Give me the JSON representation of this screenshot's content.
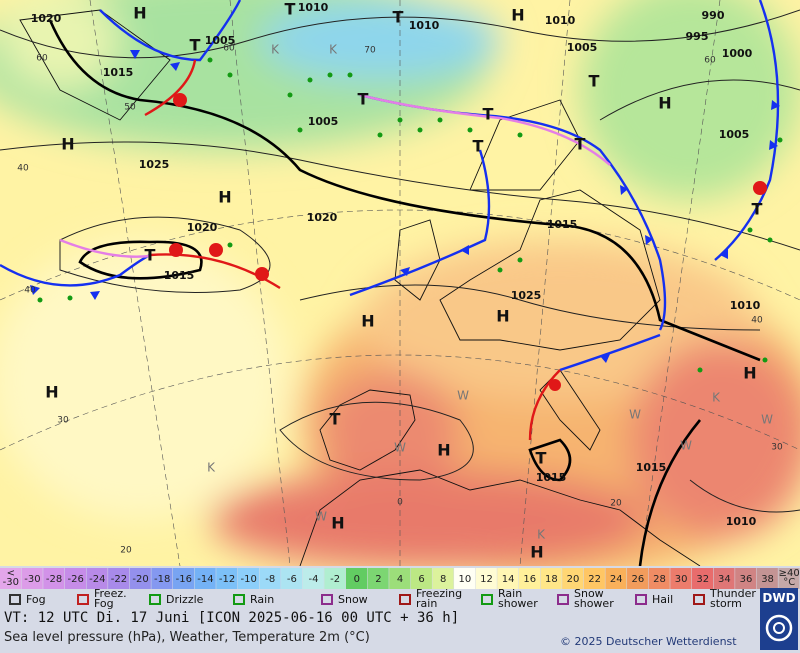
{
  "map": {
    "high_labels": [
      "H",
      "H",
      "H",
      "H",
      "H",
      "H",
      "H",
      "H",
      "H",
      "H",
      "H",
      "H"
    ],
    "low_labels": [
      "T",
      "T",
      "T",
      "T",
      "T",
      "T",
      "T",
      "T",
      "T",
      "T",
      "T",
      "T"
    ],
    "isobar_labels": [
      "1020",
      "1010",
      "1010",
      "1010",
      "990",
      "995",
      "1000",
      "1005",
      "1005",
      "1015",
      "1005",
      "1025",
      "1005",
      "1020",
      "1020",
      "1015",
      "1015",
      "1025",
      "1010",
      "1015",
      "1015",
      "1010"
    ],
    "temperature_labels": [
      "60",
      "50",
      "40",
      "40",
      "30",
      "20",
      "20",
      "0",
      "40",
      "60",
      "70",
      "60",
      "30"
    ],
    "other_labels": [
      "K",
      "K",
      "K",
      "K",
      "K",
      "W",
      "W",
      "W",
      "W",
      "W",
      "W"
    ]
  },
  "legend": {
    "scale": [
      "<\n-30",
      "-30",
      "-28",
      "-26",
      "-24",
      "-22",
      "-20",
      "-18",
      "-16",
      "-14",
      "-12",
      "-10",
      "-8",
      "-6",
      "-4",
      "-2",
      "0",
      "2",
      "4",
      "6",
      "8",
      "10",
      "12",
      "14",
      "16",
      "18",
      "20",
      "22",
      "24",
      "26",
      "28",
      "30",
      "32",
      "34",
      "36",
      "38",
      "≥40\n°C"
    ],
    "scale_colors": [
      "#e3a6ea",
      "#dc9ce8",
      "#d292e8",
      "#c68ce8",
      "#b88ae8",
      "#a88aea",
      "#9490ec",
      "#8498f0",
      "#78a4f2",
      "#74b2f6",
      "#7cc0f8",
      "#8ccefa",
      "#9cdaf8",
      "#ace4f2",
      "#bcecea",
      "#b0eed0",
      "#62cc62",
      "#7cd672",
      "#9cde7a",
      "#bce884",
      "#dcf29c",
      "#fffff4",
      "#fffcd4",
      "#fff6b4",
      "#fff09a",
      "#ffe688",
      "#ffd674",
      "#ffc664",
      "#f9b05a",
      "#f29c5c",
      "#f08c64",
      "#ec7c6c",
      "#e86c6c",
      "#df7676",
      "#d08484",
      "#c49494",
      "#c4a8a8"
    ],
    "symbols": [
      "Fog",
      "Freez.\nFog",
      "Drizzle",
      "Rain",
      "Snow",
      "Freezing\nrain",
      "Rain\nshower",
      "Snow\nshower",
      "Hail",
      "Thunder\nstorm"
    ]
  },
  "footer": {
    "valid_time": "VT: 12 UTC Di.  17 Juni [ICON 2025-06-16  00 UTC + 36 h]",
    "description": "Sea level pressure (hPa), Weather, Temperature 2m (°C)",
    "copyright": "© 2025 Deutscher Wetterdienst",
    "logo": "DWD"
  }
}
